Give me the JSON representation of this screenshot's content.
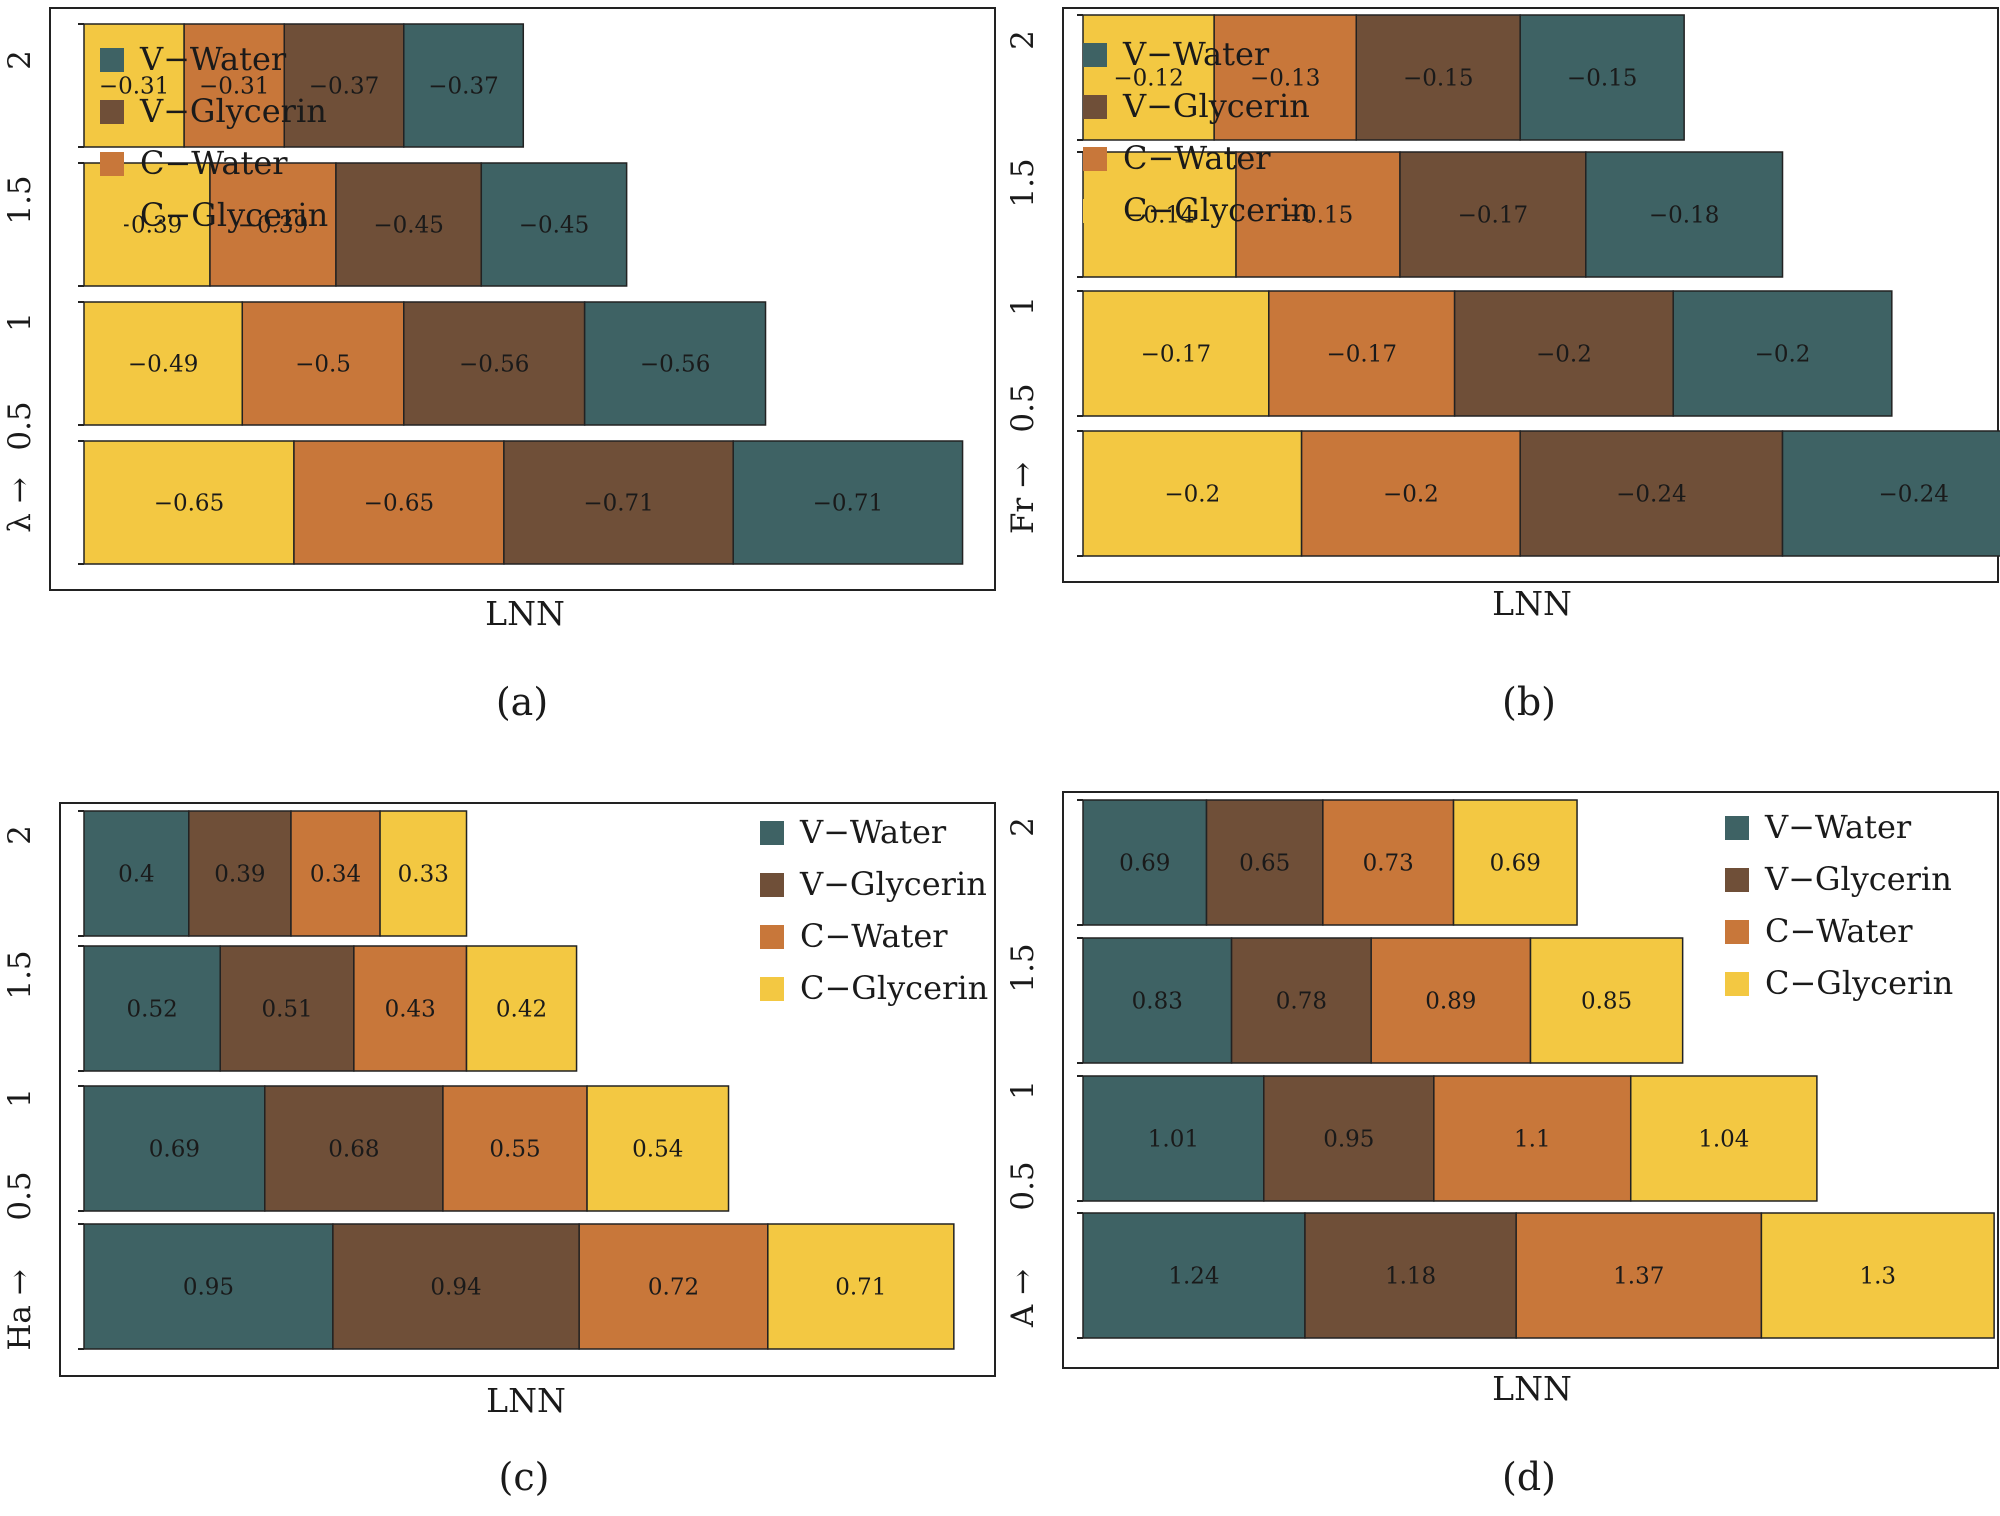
{
  "colors": {
    "V-Water": "#3e6264",
    "V-Glycerin": "#6f4f38",
    "C-Water": "#c8773a",
    "C-Glycerin": "#f3c842",
    "frame": "#222222"
  },
  "chart_data": [
    {
      "type": "bar",
      "orientation": "horizontal-stacked",
      "caption": "(a)",
      "xlabel": "LNN",
      "ylabel_prefix": "λ →",
      "categories": [
        "0.5",
        "1",
        "1.5",
        "2"
      ],
      "segment_order": [
        "C-Glycerin",
        "C-Water",
        "V-Glycerin",
        "V-Water"
      ],
      "series": [
        {
          "name": "V-Water",
          "values": [
            -0.71,
            -0.56,
            -0.45,
            -0.37
          ]
        },
        {
          "name": "V-Glycerin",
          "values": [
            -0.71,
            -0.56,
            -0.45,
            -0.37
          ]
        },
        {
          "name": "C-Water",
          "values": [
            -0.65,
            -0.5,
            -0.39,
            -0.31
          ]
        },
        {
          "name": "C-Glycerin",
          "values": [
            -0.65,
            -0.49,
            -0.39,
            -0.31
          ]
        }
      ],
      "legend": [
        "V-Water",
        "V-Glycerin",
        "C-Water",
        "C-Glycerin"
      ],
      "legend_position": "top-left",
      "legend_labels": [
        "V−Water",
        "V−Glycerin",
        "C−Water",
        "C−Glycerin"
      ]
    },
    {
      "type": "bar",
      "orientation": "horizontal-stacked",
      "caption": "(b)",
      "xlabel": "LNN",
      "ylabel_prefix": "Fr →",
      "categories": [
        "0.5",
        "1",
        "1.5",
        "2"
      ],
      "segment_order": [
        "C-Glycerin",
        "C-Water",
        "V-Glycerin",
        "V-Water"
      ],
      "series": [
        {
          "name": "V-Water",
          "values": [
            -0.24,
            -0.2,
            -0.18,
            -0.15
          ]
        },
        {
          "name": "V-Glycerin",
          "values": [
            -0.24,
            -0.2,
            -0.17,
            -0.15
          ]
        },
        {
          "name": "C-Water",
          "values": [
            -0.2,
            -0.17,
            -0.15,
            -0.13
          ]
        },
        {
          "name": "C-Glycerin",
          "values": [
            -0.2,
            -0.17,
            -0.14,
            -0.12
          ]
        }
      ],
      "legend": [
        "V-Water",
        "V-Glycerin",
        "C-Water",
        "C-Glycerin"
      ],
      "legend_position": "top-left",
      "legend_labels": [
        "V−Water",
        "V−Glycerin",
        "C−Water",
        "C−Glycerin"
      ]
    },
    {
      "type": "bar",
      "orientation": "horizontal-stacked",
      "caption": "(c)",
      "xlabel": "LNN",
      "ylabel_prefix": "Ha →",
      "categories": [
        "0.5",
        "1",
        "1.5",
        "2"
      ],
      "segment_order": [
        "V-Water",
        "V-Glycerin",
        "C-Water",
        "C-Glycerin"
      ],
      "series": [
        {
          "name": "V-Water",
          "values": [
            0.95,
            0.69,
            0.52,
            0.4
          ]
        },
        {
          "name": "V-Glycerin",
          "values": [
            0.94,
            0.68,
            0.51,
            0.39
          ]
        },
        {
          "name": "C-Water",
          "values": [
            0.72,
            0.55,
            0.43,
            0.34
          ]
        },
        {
          "name": "C-Glycerin",
          "values": [
            0.71,
            0.54,
            0.42,
            0.33
          ]
        }
      ],
      "legend": [
        "V-Water",
        "V-Glycerin",
        "C-Water",
        "C-Glycerin"
      ],
      "legend_position": "top-right",
      "legend_labels": [
        "V−Water",
        "V−Glycerin",
        "C−Water",
        "C−Glycerin"
      ]
    },
    {
      "type": "bar",
      "orientation": "horizontal-stacked",
      "caption": "(d)",
      "xlabel": "LNN",
      "ylabel_prefix": "A →",
      "categories": [
        "0.5",
        "1",
        "1.5",
        "2"
      ],
      "segment_order": [
        "V-Water",
        "V-Glycerin",
        "C-Water",
        "C-Glycerin"
      ],
      "series": [
        {
          "name": "V-Water",
          "values": [
            1.24,
            1.01,
            0.83,
            0.69
          ]
        },
        {
          "name": "V-Glycerin",
          "values": [
            1.18,
            0.95,
            0.78,
            0.65
          ]
        },
        {
          "name": "C-Water",
          "values": [
            1.37,
            1.1,
            0.89,
            0.73
          ]
        },
        {
          "name": "C-Glycerin",
          "values": [
            1.3,
            1.04,
            0.85,
            0.69
          ]
        }
      ],
      "legend": [
        "V-Water",
        "V-Glycerin",
        "C-Water",
        "C-Glycerin"
      ],
      "legend_position": "top-right",
      "legend_labels": [
        "V−Water",
        "V−Glycerin",
        "C−Water",
        "C−Glycerin"
      ]
    }
  ]
}
